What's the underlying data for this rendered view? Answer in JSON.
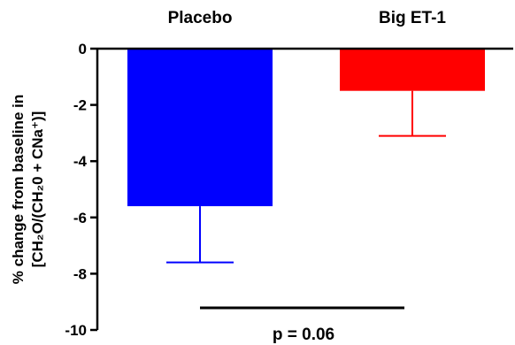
{
  "chart_data": {
    "type": "bar",
    "categories": [
      "Placebo",
      "Big ET-1"
    ],
    "values": [
      -5.6,
      -1.5
    ],
    "error_bars": [
      2.0,
      1.6
    ],
    "colors": [
      "#0000ff",
      "#ff0000"
    ],
    "ylabel_line1": "% change from baseline in",
    "ylabel_line2": "[CH₂O/(CH₂0 + CNa⁺)]",
    "ylim": [
      -10,
      0
    ],
    "yticks": [
      0,
      -2,
      -4,
      -6,
      -8,
      -10
    ],
    "ytick_labels": [
      "0",
      "-2",
      "-4",
      "-6",
      "-8",
      "-10"
    ],
    "annotation": "p = 0.06",
    "grid": false
  }
}
